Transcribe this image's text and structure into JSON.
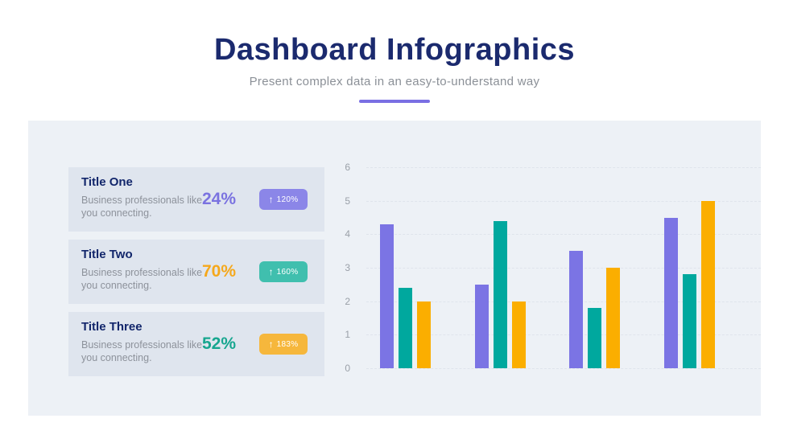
{
  "header": {
    "title": "Dashboard Infographics",
    "subtitle": "Present complex data in an easy-to-understand way",
    "underline_color": "#7a6fe3",
    "title_color": "#1b2a6e"
  },
  "panel": {
    "background": "#edf1f6",
    "card_background": "#dfe5ee"
  },
  "cards": [
    {
      "title": "Title One",
      "description": "Business professionals like you connecting.",
      "percent": "24%",
      "percent_color": "#7a72e0",
      "badge": {
        "arrow": "↑",
        "arrow_icon": "arrow-up-icon",
        "value": "120%",
        "color": "#8b86e8"
      }
    },
    {
      "title": "Title Two",
      "description": "Business professionals like you connecting.",
      "percent": "70%",
      "percent_color": "#f5a81c",
      "badge": {
        "arrow": "↑",
        "arrow_icon": "arrow-up-icon",
        "value": "160%",
        "color": "#40bfae"
      }
    },
    {
      "title": "Title Three",
      "description": "Business professionals like you connecting.",
      "percent": "52%",
      "percent_color": "#17a68f",
      "badge": {
        "arrow": "↑",
        "arrow_icon": "arrow-up-icon",
        "value": "183%",
        "color": "#f6b73c"
      }
    }
  ],
  "chart_data": {
    "type": "bar",
    "categories": [
      "",
      "",
      "",
      ""
    ],
    "series": [
      {
        "name": "purple",
        "color": "#7b74e4",
        "values": [
          4.3,
          2.5,
          3.5,
          4.5
        ]
      },
      {
        "name": "teal",
        "color": "#00a89e",
        "values": [
          2.4,
          4.4,
          1.8,
          2.8
        ]
      },
      {
        "name": "amber",
        "color": "#fbae00",
        "values": [
          2.0,
          2.0,
          3.0,
          5.0
        ]
      }
    ],
    "title": "",
    "xlabel": "",
    "ylabel": "",
    "ylim": [
      0,
      6
    ],
    "yticks": [
      0,
      1,
      2,
      3,
      4,
      5,
      6
    ],
    "grid": "horizontal-dashed-faint",
    "grid_color": "#dfe4ec",
    "tick_label_color": "#9aa0a8",
    "legend": "none",
    "x_axis_labels": "none"
  }
}
